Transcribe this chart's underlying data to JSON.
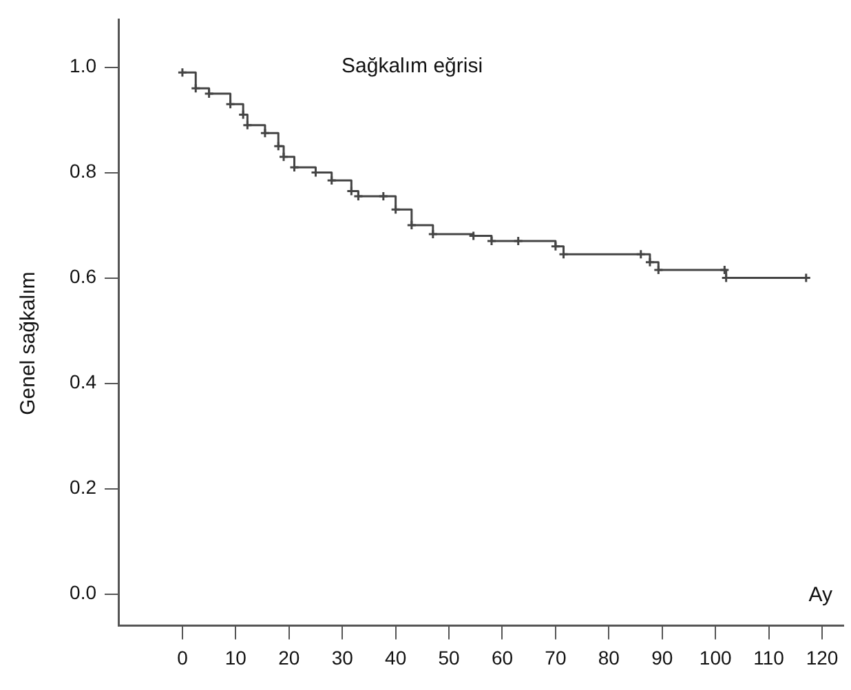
{
  "chart_data": {
    "type": "step",
    "title": "Sağkalım eğrisi",
    "xlabel": "Ay",
    "ylabel": "Genel sağkalım",
    "x": [
      0,
      2.5,
      5,
      9,
      11.4,
      12.2,
      15.5,
      18,
      19,
      21,
      25,
      28,
      31.7,
      33,
      37.7,
      40,
      43,
      47,
      54.6,
      58,
      63,
      70,
      71.5,
      86,
      87.7,
      89.3,
      101.7,
      102,
      117
    ],
    "series": [
      {
        "color": "#444444",
        "values": [
          0.99,
          0.96,
          0.95,
          0.93,
          0.91,
          0.89,
          0.875,
          0.85,
          0.83,
          0.81,
          0.8,
          0.785,
          0.765,
          0.755,
          0.755,
          0.73,
          0.7,
          0.683,
          0.68,
          0.67,
          0.67,
          0.66,
          0.645,
          0.645,
          0.63,
          0.615,
          0.615,
          0.6,
          0.6
        ]
      }
    ],
    "xlim": [
      -12,
      124
    ],
    "ylim": [
      -0.06,
      1.09
    ],
    "xticks": [
      0,
      10,
      20,
      30,
      40,
      50,
      60,
      70,
      80,
      90,
      100,
      110,
      120
    ],
    "yticks": [
      {
        "value": 0,
        "label": "0.0"
      },
      {
        "value": 0.2,
        "label": "0.2"
      },
      {
        "value": 0.4,
        "label": "0.4"
      },
      {
        "value": 0.6,
        "label": "0.6"
      },
      {
        "value": 0.8,
        "label": "0.8"
      },
      {
        "value": 1,
        "label": "1.0"
      }
    ],
    "grid": false,
    "legend": false,
    "marker": "cross",
    "line_style": "solid"
  }
}
